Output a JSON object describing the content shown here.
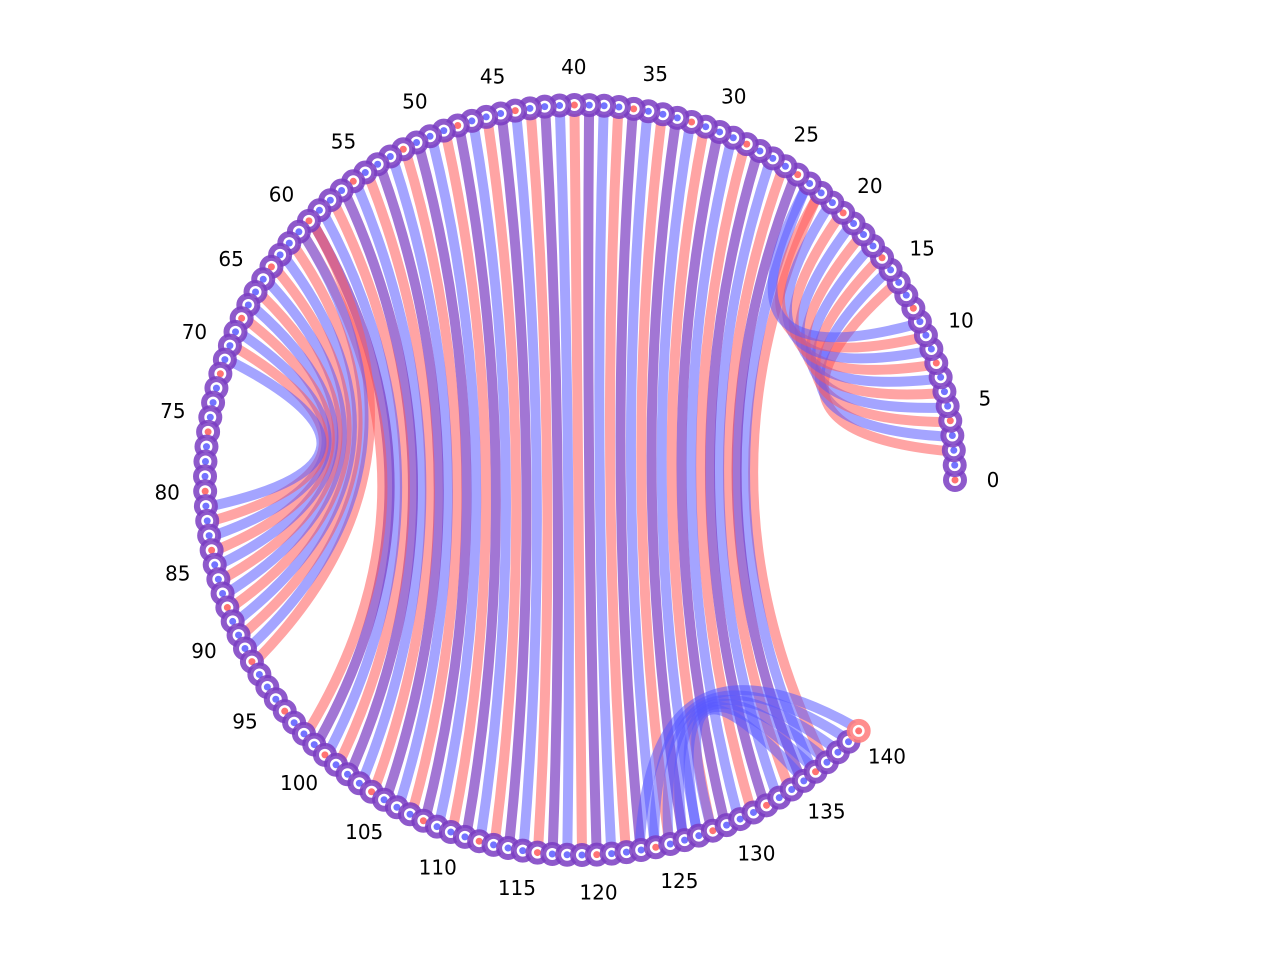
{
  "diagram": {
    "type": "arc-diagram-circular",
    "node_count": 141,
    "tick_labels": [
      "0",
      "5",
      "10",
      "15",
      "20",
      "25",
      "30",
      "35",
      "40",
      "45",
      "50",
      "55",
      "60",
      "65",
      "70",
      "75",
      "80",
      "85",
      "90",
      "95",
      "100",
      "105",
      "110",
      "115",
      "120",
      "125",
      "130",
      "135",
      "140"
    ],
    "colors": {
      "red": "#ff5a5a",
      "blue": "#5a5aff",
      "red_alpha": 0.55,
      "blue_alpha": 0.55
    },
    "notes": "Circular chord-like diagram with nodes 0..140 placed along a large open arc; many semi-transparent red and blue chords connect node pairs."
  }
}
